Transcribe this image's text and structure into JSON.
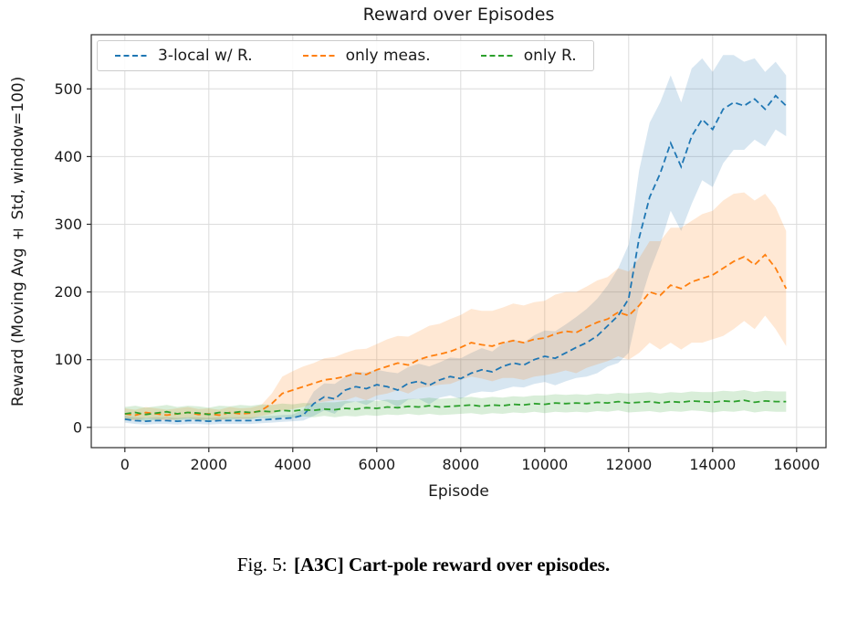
{
  "figure": {
    "caption_prefix": "Fig. 5:",
    "caption_bold": "[A3C] Cart-pole reward over episodes."
  },
  "chart_data": {
    "type": "line",
    "title": "Reward over Episodes",
    "xlabel": "Episode",
    "ylabel": "Reward (Moving Avg ± Std, window=100)",
    "xlim": [
      -800,
      16700
    ],
    "ylim": [
      -30,
      580
    ],
    "xticks": [
      0,
      2000,
      4000,
      6000,
      8000,
      10000,
      12000,
      14000,
      16000
    ],
    "yticks": [
      0,
      100,
      200,
      300,
      400,
      500
    ],
    "grid": true,
    "legend_position": "upper left",
    "band_opacity": 0.18,
    "x": [
      0,
      250,
      500,
      750,
      1000,
      1250,
      1500,
      1750,
      2000,
      2250,
      2500,
      2750,
      3000,
      3250,
      3500,
      3750,
      4000,
      4250,
      4500,
      4750,
      5000,
      5250,
      5500,
      5750,
      6000,
      6250,
      6500,
      6750,
      7000,
      7250,
      7500,
      7750,
      8000,
      8250,
      8500,
      8750,
      9000,
      9250,
      9500,
      9750,
      10000,
      10250,
      10500,
      10750,
      11000,
      11250,
      11500,
      11750,
      12000,
      12250,
      12500,
      12750,
      13000,
      13250,
      13500,
      13750,
      14000,
      14250,
      14500,
      14750,
      15000,
      15250,
      15500,
      15750
    ],
    "series": [
      {
        "name": "3-local w/ R.",
        "color": "#1f77b4",
        "mean": [
          12,
          10,
          9,
          10,
          10,
          9,
          10,
          10,
          9,
          10,
          10,
          10,
          10,
          11,
          12,
          13,
          14,
          18,
          35,
          45,
          42,
          55,
          60,
          57,
          63,
          60,
          55,
          65,
          68,
          62,
          70,
          75,
          72,
          80,
          85,
          82,
          90,
          95,
          92,
          100,
          105,
          102,
          110,
          118,
          125,
          135,
          150,
          165,
          190,
          280,
          340,
          375,
          420,
          385,
          430,
          455,
          440,
          470,
          480,
          475,
          485,
          470,
          490,
          475
        ],
        "std": [
          5,
          5,
          5,
          5,
          5,
          5,
          5,
          5,
          5,
          5,
          5,
          5,
          5,
          5,
          5,
          5,
          5,
          8,
          18,
          20,
          22,
          20,
          22,
          24,
          22,
          22,
          25,
          24,
          26,
          28,
          26,
          28,
          30,
          30,
          32,
          30,
          34,
          35,
          33,
          36,
          38,
          40,
          42,
          45,
          50,
          55,
          60,
          70,
          80,
          100,
          110,
          105,
          100,
          95,
          100,
          90,
          85,
          80,
          70,
          65,
          60,
          55,
          50,
          45
        ]
      },
      {
        "name": "only meas.",
        "color": "#ff7f0e",
        "mean": [
          20,
          18,
          22,
          20,
          18,
          20,
          22,
          19,
          20,
          18,
          22,
          20,
          21,
          25,
          35,
          50,
          55,
          60,
          65,
          70,
          72,
          75,
          80,
          78,
          85,
          90,
          95,
          92,
          100,
          105,
          108,
          112,
          118,
          125,
          122,
          120,
          125,
          128,
          125,
          130,
          132,
          138,
          142,
          140,
          148,
          155,
          160,
          170,
          165,
          180,
          200,
          195,
          210,
          205,
          215,
          220,
          225,
          235,
          245,
          252,
          240,
          255,
          235,
          205
        ],
        "std": [
          8,
          8,
          8,
          8,
          8,
          8,
          8,
          8,
          8,
          8,
          8,
          8,
          8,
          8,
          15,
          25,
          28,
          30,
          30,
          32,
          32,
          35,
          35,
          38,
          38,
          40,
          40,
          42,
          42,
          45,
          45,
          48,
          48,
          50,
          50,
          52,
          52,
          55,
          55,
          55,
          55,
          58,
          58,
          60,
          60,
          62,
          62,
          65,
          65,
          70,
          75,
          80,
          85,
          90,
          90,
          95,
          95,
          100,
          100,
          95,
          95,
          90,
          90,
          85
        ]
      },
      {
        "name": "only R.",
        "color": "#2ca02c",
        "mean": [
          20,
          22,
          19,
          21,
          23,
          20,
          22,
          21,
          19,
          22,
          21,
          23,
          22,
          24,
          23,
          25,
          24,
          26,
          25,
          27,
          26,
          28,
          27,
          29,
          28,
          30,
          29,
          31,
          30,
          32,
          30,
          31,
          32,
          33,
          31,
          33,
          32,
          34,
          33,
          35,
          34,
          36,
          35,
          36,
          35,
          37,
          36,
          38,
          36,
          37,
          38,
          36,
          38,
          37,
          39,
          38,
          37,
          39,
          38,
          40,
          37,
          39,
          38,
          38
        ],
        "std": [
          10,
          10,
          10,
          10,
          10,
          10,
          10,
          10,
          10,
          10,
          10,
          10,
          10,
          10,
          10,
          10,
          10,
          10,
          10,
          10,
          11,
          11,
          11,
          11,
          11,
          11,
          11,
          11,
          12,
          12,
          12,
          12,
          12,
          12,
          12,
          12,
          12,
          12,
          12,
          12,
          13,
          13,
          13,
          13,
          13,
          13,
          13,
          13,
          14,
          14,
          14,
          14,
          14,
          14,
          14,
          14,
          15,
          15,
          15,
          15,
          15,
          15,
          15,
          15
        ]
      }
    ]
  }
}
